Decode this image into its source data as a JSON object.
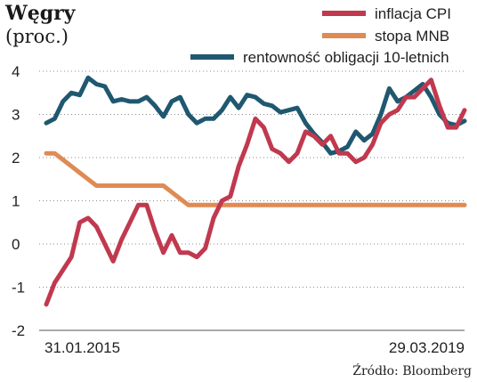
{
  "chart_data": {
    "type": "line",
    "title": "Węgry",
    "subtitle": "(proc.)",
    "source": "Źródło: Bloomberg",
    "xlabel": "",
    "ylabel": "",
    "x_start_label": "31.01.2015",
    "x_end_label": "29.03.2019",
    "ylim": [
      -2,
      4
    ],
    "y_ticks": [
      "4",
      "3",
      "2",
      "1",
      "0",
      "-1",
      "-2"
    ],
    "grid": true,
    "legend_position": "top-right",
    "series": [
      {
        "name": "inflacja CPI",
        "color": "#c0394f",
        "values": [
          -1.4,
          -0.9,
          -0.6,
          -0.3,
          0.5,
          0.6,
          0.4,
          0.0,
          -0.4,
          0.1,
          0.5,
          0.9,
          0.9,
          0.3,
          -0.2,
          0.2,
          -0.2,
          -0.2,
          -0.3,
          -0.1,
          0.6,
          1.0,
          1.1,
          1.8,
          2.3,
          2.9,
          2.7,
          2.2,
          2.1,
          1.9,
          2.1,
          2.6,
          2.5,
          2.3,
          2.5,
          2.1,
          2.1,
          1.9,
          2.0,
          2.3,
          2.8,
          3.0,
          3.1,
          3.4,
          3.4,
          3.6,
          3.8,
          3.2,
          2.7,
          2.7,
          3.1
        ]
      },
      {
        "name": "stopa MNB",
        "color": "#e08a55",
        "values": [
          2.1,
          2.1,
          1.95,
          1.8,
          1.65,
          1.5,
          1.35,
          1.35,
          1.35,
          1.35,
          1.35,
          1.35,
          1.35,
          1.35,
          1.35,
          1.2,
          1.05,
          0.9,
          0.9,
          0.9,
          0.9,
          0.9,
          0.9,
          0.9,
          0.9,
          0.9,
          0.9,
          0.9,
          0.9,
          0.9,
          0.9,
          0.9,
          0.9,
          0.9,
          0.9,
          0.9,
          0.9,
          0.9,
          0.9,
          0.9,
          0.9,
          0.9,
          0.9,
          0.9,
          0.9,
          0.9,
          0.9,
          0.9,
          0.9,
          0.9,
          0.9
        ]
      },
      {
        "name": "rentowność obligacji 10-letnich",
        "color": "#1f5870",
        "values": [
          2.8,
          2.9,
          3.3,
          3.5,
          3.45,
          3.85,
          3.7,
          3.65,
          3.3,
          3.35,
          3.3,
          3.3,
          3.4,
          3.2,
          2.95,
          3.3,
          3.4,
          3.0,
          2.8,
          2.9,
          2.9,
          3.1,
          3.4,
          3.15,
          3.45,
          3.4,
          3.25,
          3.2,
          3.05,
          3.1,
          3.15,
          2.8,
          2.55,
          2.35,
          2.1,
          2.15,
          2.25,
          2.6,
          2.4,
          2.55,
          3.0,
          3.6,
          3.3,
          3.4,
          3.55,
          3.7,
          3.4,
          3.0,
          2.8,
          2.75,
          2.85
        ]
      }
    ]
  }
}
